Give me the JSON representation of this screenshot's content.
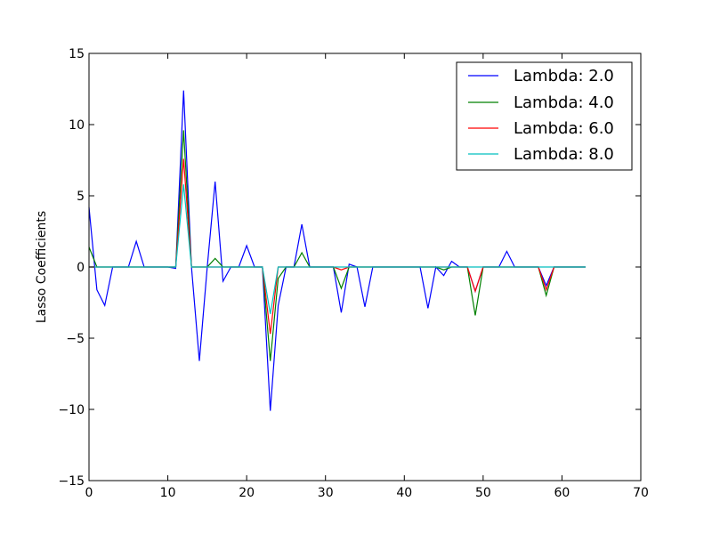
{
  "chart_data": {
    "type": "line",
    "title": "",
    "xlabel": "",
    "ylabel": "Lasso Coefficients",
    "xlim": [
      0,
      70
    ],
    "ylim": [
      -15,
      15
    ],
    "xticks": [
      0,
      10,
      20,
      30,
      40,
      50,
      60,
      70
    ],
    "yticks": [
      -15,
      -10,
      -5,
      0,
      5,
      10,
      15
    ],
    "xtick_labels": [
      "0",
      "10",
      "20",
      "30",
      "40",
      "50",
      "60",
      "70"
    ],
    "ytick_labels": [
      "−15",
      "−10",
      "−5",
      "0",
      "5",
      "10",
      "15"
    ],
    "grid": false,
    "legend_position": "top-right",
    "x": [
      0,
      1,
      2,
      3,
      4,
      5,
      6,
      7,
      8,
      9,
      10,
      11,
      12,
      13,
      14,
      15,
      16,
      17,
      18,
      19,
      20,
      21,
      22,
      23,
      24,
      25,
      26,
      27,
      28,
      29,
      30,
      31,
      32,
      33,
      34,
      35,
      36,
      37,
      38,
      39,
      40,
      41,
      42,
      43,
      44,
      45,
      46,
      47,
      48,
      49,
      50,
      51,
      52,
      53,
      54,
      55,
      56,
      57,
      58,
      59,
      60,
      61,
      62,
      63
    ],
    "series": [
      {
        "name": "Lambda: 2.0",
        "color": "#0000ff",
        "values": [
          4.2,
          -1.6,
          -2.7,
          0,
          0,
          0,
          1.8,
          0,
          0,
          0,
          0,
          -0.1,
          12.4,
          0,
          -6.6,
          0,
          6.0,
          -1.0,
          0,
          0,
          1.5,
          0,
          0,
          -10.1,
          -2.7,
          0,
          0,
          3.0,
          0,
          0,
          0,
          0,
          -3.2,
          0.2,
          0,
          -2.8,
          0,
          0,
          0,
          0,
          0,
          0,
          0,
          -2.9,
          0,
          -0.6,
          0.4,
          0,
          0,
          -1.7,
          0,
          0,
          0,
          1.1,
          0,
          0,
          0,
          0,
          -1.3,
          0,
          0,
          0,
          0,
          0
        ]
      },
      {
        "name": "Lambda: 4.0",
        "color": "#008000",
        "values": [
          1.4,
          0,
          0,
          0,
          0,
          0,
          0,
          0,
          0,
          0,
          0,
          0,
          9.6,
          0,
          0,
          0,
          0.6,
          0,
          0,
          0,
          0,
          0,
          0,
          -6.6,
          -0.8,
          0,
          0,
          1.0,
          0,
          0,
          0,
          0,
          -1.5,
          0,
          0,
          0,
          0,
          0,
          0,
          0,
          0,
          0,
          0,
          0,
          0,
          -0.2,
          0,
          0,
          0,
          -3.4,
          0,
          0,
          0,
          0,
          0,
          0,
          0,
          0,
          -2.0,
          0,
          0,
          0,
          0,
          0
        ]
      },
      {
        "name": "Lambda: 6.0",
        "color": "#ff0000",
        "values": [
          0,
          0,
          0,
          0,
          0,
          0,
          0,
          0,
          0,
          0,
          0,
          0,
          7.6,
          0,
          0,
          0,
          0,
          0,
          0,
          0,
          0,
          0,
          0,
          -4.7,
          0,
          0,
          0,
          0,
          0,
          0,
          0,
          0,
          -0.2,
          0,
          0,
          0,
          0,
          0,
          0,
          0,
          0,
          0,
          0,
          0,
          0,
          0,
          0,
          0,
          0,
          -1.7,
          0,
          0,
          0,
          0,
          0,
          0,
          0,
          0,
          -1.6,
          0,
          0,
          0,
          0,
          0
        ]
      },
      {
        "name": "Lambda: 8.0",
        "color": "#00bfbf",
        "values": [
          0,
          0,
          0,
          0,
          0,
          0,
          0,
          0,
          0,
          0,
          0,
          0,
          5.8,
          0,
          0,
          0,
          0,
          0,
          0,
          0,
          0,
          0,
          0,
          -3.3,
          0,
          0,
          0,
          0,
          0,
          0,
          0,
          0,
          0,
          0,
          0,
          0,
          0,
          0,
          0,
          0,
          0,
          0,
          0,
          0,
          0,
          0,
          0,
          0,
          0,
          0,
          0,
          0,
          0,
          0,
          0,
          0,
          0,
          0,
          0,
          0,
          0,
          0,
          0,
          0
        ]
      }
    ]
  }
}
